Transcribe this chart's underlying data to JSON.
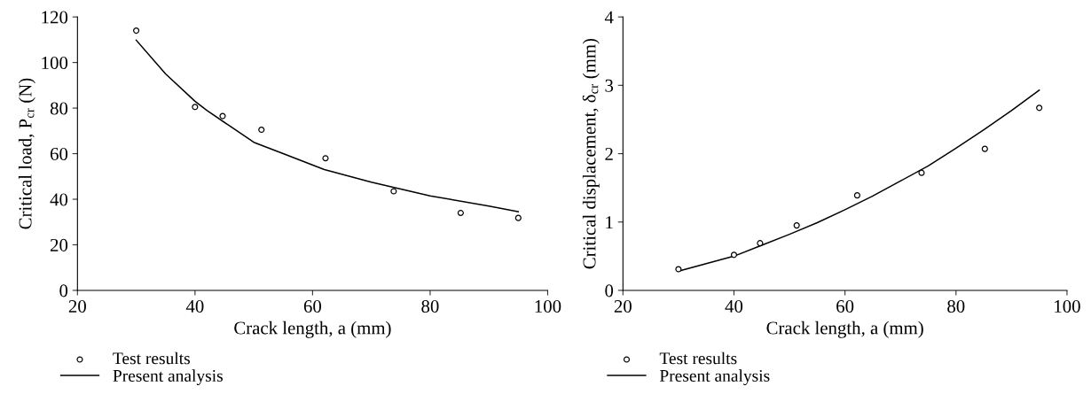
{
  "chart_data": [
    {
      "type": "scatter",
      "xlabel": "Crack length, a (mm)",
      "ylabel": "Critical load, P$_{cr}$ (N)",
      "xlim": [
        20,
        100
      ],
      "xticks": [
        20,
        40,
        60,
        80,
        100
      ],
      "ylim": [
        0,
        120
      ],
      "yticks": [
        0,
        20,
        40,
        60,
        80,
        100,
        120
      ],
      "grid": false,
      "legend": "bottom left",
      "series": [
        {
          "name": "Test results",
          "marker": "circle",
          "color": "#000000",
          "x": [
            30,
            40,
            44.7,
            51.3,
            62.2,
            73.8,
            85.2,
            95
          ],
          "values": [
            114,
            80.5,
            76.5,
            70.5,
            58,
            43.5,
            34,
            31.8
          ]
        },
        {
          "name": "Present analysis",
          "type": "line",
          "marker": "none",
          "line_style": "solid",
          "color": "#000000",
          "x": [
            30,
            35,
            40,
            42,
            46,
            50,
            55,
            62,
            70,
            80,
            90,
            95
          ],
          "values": [
            109.8,
            95,
            83,
            79,
            72,
            65,
            60,
            53,
            47.5,
            41.5,
            37,
            34.5
          ]
        }
      ]
    },
    {
      "type": "scatter",
      "xlabel": "Crack length, a (mm)",
      "ylabel": "Critical displacement, δ$_{cr}$ (mm)",
      "xlim": [
        20,
        100
      ],
      "xticks": [
        20,
        40,
        60,
        80,
        100
      ],
      "ylim": [
        0,
        4
      ],
      "yticks": [
        0,
        1,
        2,
        3,
        4
      ],
      "grid": false,
      "legend": "bottom left",
      "series": [
        {
          "name": "Test results",
          "marker": "circle",
          "color": "#000000",
          "x": [
            30,
            40,
            44.7,
            51.3,
            62.2,
            73.8,
            85.2,
            95
          ],
          "values": [
            0.31,
            0.52,
            0.69,
            0.95,
            1.39,
            1.72,
            2.07,
            2.67
          ]
        },
        {
          "name": "Present analysis",
          "type": "line",
          "marker": "none",
          "line_style": "solid",
          "color": "#000000",
          "x": [
            30,
            35,
            40,
            45,
            50,
            55,
            60,
            65,
            70,
            75,
            80,
            85,
            90,
            95
          ],
          "values": [
            0.28,
            0.39,
            0.5,
            0.66,
            0.82,
            0.99,
            1.18,
            1.38,
            1.6,
            1.82,
            2.08,
            2.35,
            2.63,
            2.93
          ]
        }
      ]
    }
  ]
}
